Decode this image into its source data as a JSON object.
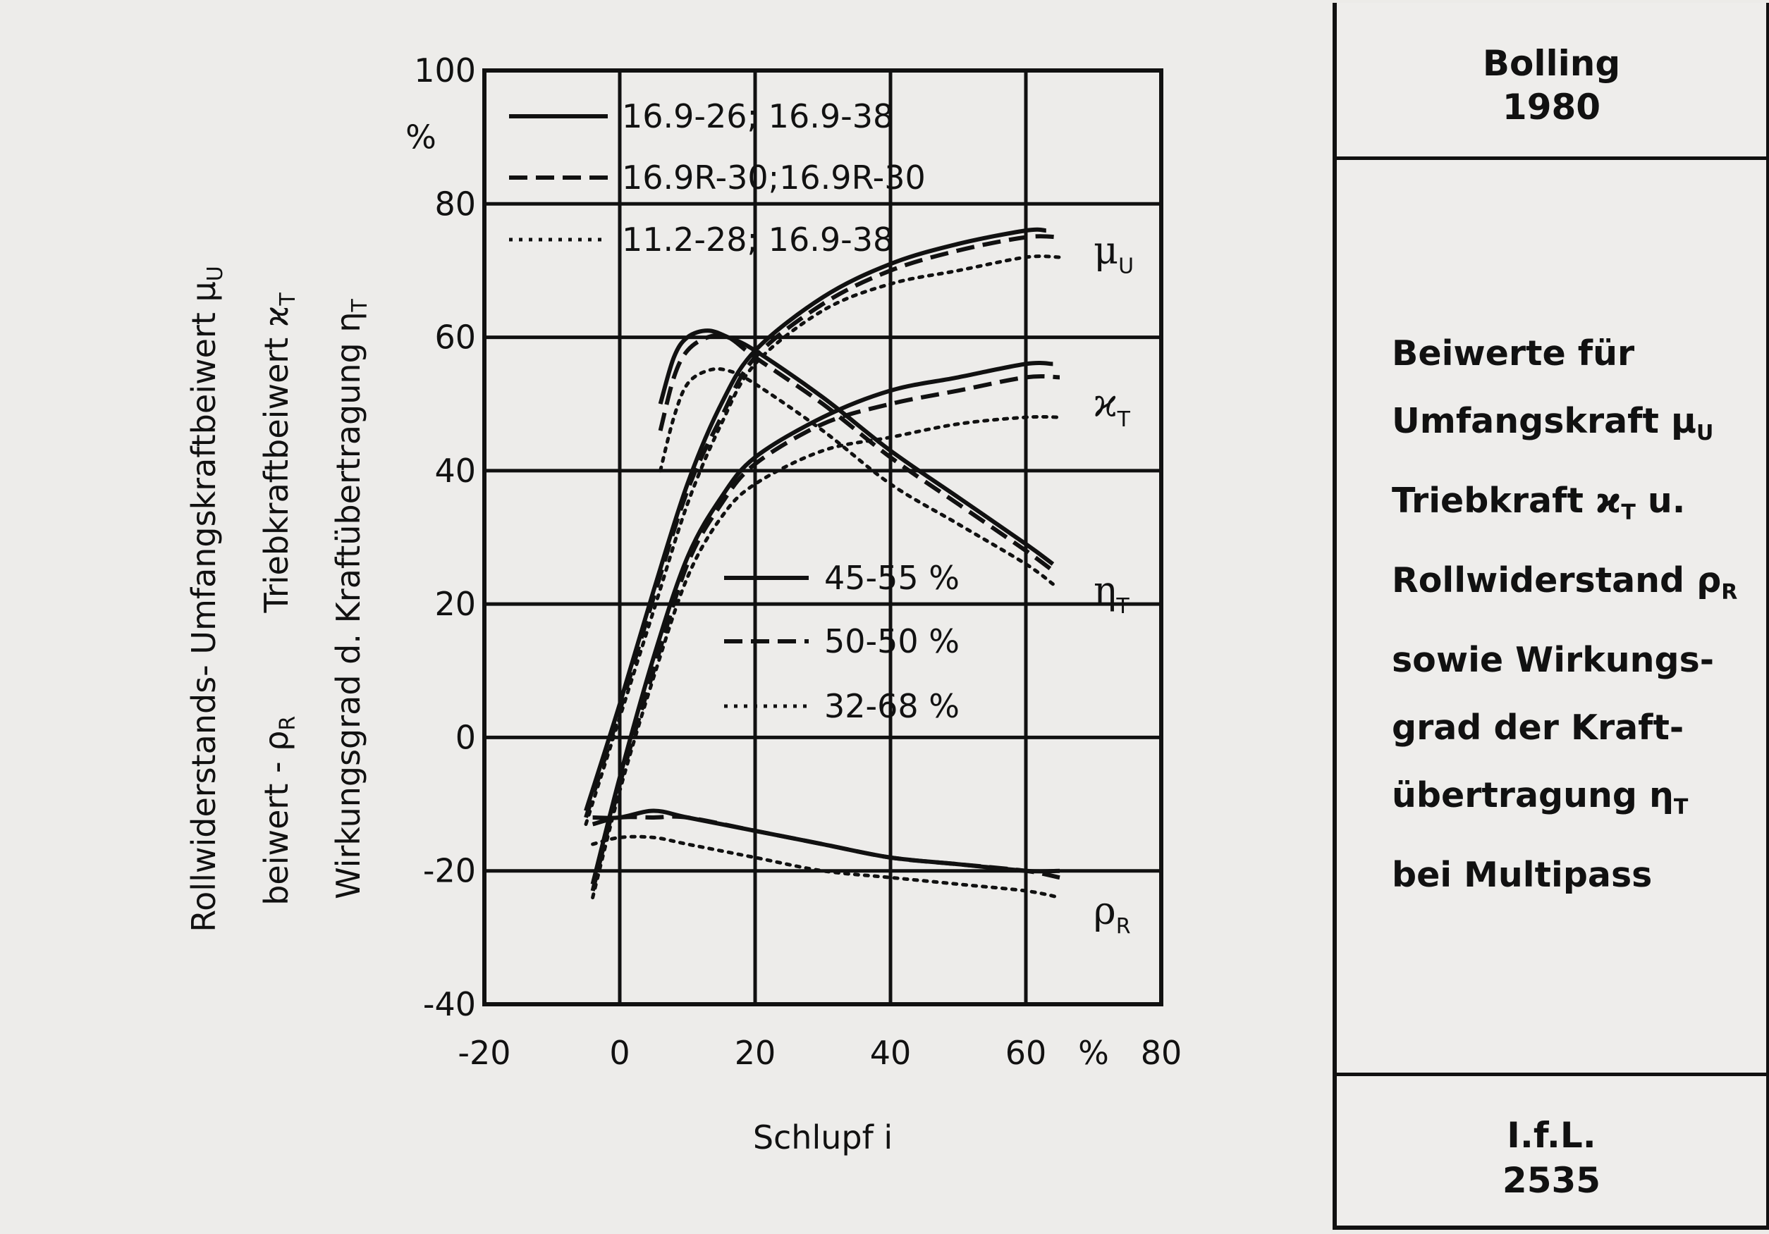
{
  "header": {
    "author": "Bolling",
    "year": "1980"
  },
  "footer": {
    "institute": "I.f.L.",
    "number": "2535"
  },
  "description": {
    "lines": [
      {
        "text": "Beiwerte für"
      },
      {
        "text": "Umfangskraft μ",
        "sub": "U"
      },
      {
        "text": "Triebkraft ϰ",
        "sub": "T",
        "tail": " u."
      },
      {
        "text": "Rollwiderstand ρ",
        "sub": "R"
      },
      {
        "text": "sowie Wirkungs-"
      },
      {
        "text": "grad der Kraft-"
      },
      {
        "text": "übertragung η",
        "sub": "T"
      },
      {
        "text": "bei Multipass"
      }
    ]
  },
  "chart_data": {
    "type": "line",
    "xlabel": "Schlupf i",
    "ylabel_lines": [
      {
        "text": "Rollwiderstands-   Umfangskraftbeiwert μ",
        "sub": "U"
      },
      {
        "text": "beiwert - ρ",
        "sub": "R",
        "tail": "          Triebkraftbeiwert ϰ",
        "sub2": "T"
      },
      {
        "text": "Wirkungsgrad d. Kraftübertragung η",
        "sub": "T"
      }
    ],
    "y_unit": "%",
    "x_unit": "%",
    "xlim": [
      -20,
      80
    ],
    "ylim": [
      -40,
      100
    ],
    "x_ticks": [
      "-20",
      "0",
      "20",
      "40",
      "60",
      "80"
    ],
    "y_ticks": [
      "100",
      "80",
      "60",
      "40",
      "20",
      "0",
      "-20",
      "-40"
    ],
    "legend_tyres": [
      {
        "style": "solid",
        "label": "16.9-26; 16.9-38"
      },
      {
        "style": "dashed",
        "label": "16.9R-30;16.9R-30"
      },
      {
        "style": "dotted",
        "label": "11.2-28; 16.9-38"
      }
    ],
    "legend_weight": [
      {
        "style": "solid",
        "label": "45-55 %"
      },
      {
        "style": "dashed",
        "label": "50-50 %"
      },
      {
        "style": "dotted",
        "label": "32-68 %"
      }
    ],
    "curve_labels": [
      {
        "base": "μ",
        "sub": "U",
        "x": 70,
        "y": 73
      },
      {
        "base": "ϰ",
        "sub": "T",
        "x": 70,
        "y": 50
      },
      {
        "base": "η",
        "sub": "T",
        "x": 70,
        "y": 22
      },
      {
        "base": "ρ",
        "sub": "R",
        "x": 70,
        "y": -26
      }
    ],
    "series": [
      {
        "group": "mu_U",
        "style": "solid",
        "points": [
          [
            -5,
            -11
          ],
          [
            0,
            5
          ],
          [
            5,
            22
          ],
          [
            10,
            38
          ],
          [
            15,
            50
          ],
          [
            20,
            58
          ],
          [
            30,
            66
          ],
          [
            40,
            71
          ],
          [
            50,
            74
          ],
          [
            60,
            76
          ],
          [
            63,
            76
          ]
        ]
      },
      {
        "group": "mu_U",
        "style": "dashed",
        "points": [
          [
            -5,
            -12
          ],
          [
            0,
            4
          ],
          [
            5,
            21
          ],
          [
            10,
            37
          ],
          [
            15,
            48
          ],
          [
            20,
            57
          ],
          [
            30,
            65
          ],
          [
            40,
            70
          ],
          [
            50,
            73
          ],
          [
            60,
            75
          ],
          [
            65,
            75
          ]
        ]
      },
      {
        "group": "mu_U",
        "style": "dotted",
        "points": [
          [
            -5,
            -13
          ],
          [
            0,
            3
          ],
          [
            5,
            19
          ],
          [
            10,
            35
          ],
          [
            15,
            47
          ],
          [
            20,
            56
          ],
          [
            30,
            64
          ],
          [
            40,
            68
          ],
          [
            50,
            70
          ],
          [
            60,
            72
          ],
          [
            65,
            72
          ]
        ]
      },
      {
        "group": "chi_T",
        "style": "solid",
        "points": [
          [
            -4,
            -22
          ],
          [
            0,
            -6
          ],
          [
            5,
            12
          ],
          [
            10,
            27
          ],
          [
            15,
            36
          ],
          [
            20,
            42
          ],
          [
            30,
            48
          ],
          [
            40,
            52
          ],
          [
            50,
            54
          ],
          [
            60,
            56
          ],
          [
            64,
            56
          ]
        ]
      },
      {
        "group": "chi_T",
        "style": "dashed",
        "points": [
          [
            -4,
            -23
          ],
          [
            0,
            -7
          ],
          [
            5,
            10
          ],
          [
            10,
            26
          ],
          [
            15,
            35
          ],
          [
            20,
            41
          ],
          [
            30,
            47
          ],
          [
            40,
            50
          ],
          [
            50,
            52
          ],
          [
            60,
            54
          ],
          [
            65,
            54
          ]
        ]
      },
      {
        "group": "chi_T",
        "style": "dotted",
        "points": [
          [
            -4,
            -24
          ],
          [
            0,
            -8
          ],
          [
            5,
            9
          ],
          [
            10,
            24
          ],
          [
            15,
            33
          ],
          [
            20,
            38
          ],
          [
            30,
            43
          ],
          [
            40,
            45
          ],
          [
            50,
            47
          ],
          [
            60,
            48
          ],
          [
            65,
            48
          ]
        ]
      },
      {
        "group": "eta_T",
        "style": "solid",
        "points": [
          [
            6,
            50
          ],
          [
            8,
            57
          ],
          [
            10,
            60
          ],
          [
            13,
            61
          ],
          [
            16,
            60
          ],
          [
            20,
            58
          ],
          [
            30,
            51
          ],
          [
            40,
            43
          ],
          [
            50,
            36
          ],
          [
            60,
            29
          ],
          [
            64,
            26
          ]
        ]
      },
      {
        "group": "eta_T",
        "style": "dashed",
        "points": [
          [
            6,
            46
          ],
          [
            8,
            54
          ],
          [
            10,
            58
          ],
          [
            13,
            60
          ],
          [
            16,
            60
          ],
          [
            20,
            57
          ],
          [
            30,
            50
          ],
          [
            40,
            42
          ],
          [
            50,
            35
          ],
          [
            60,
            28
          ],
          [
            64,
            25
          ]
        ]
      },
      {
        "group": "eta_T",
        "style": "dotted",
        "points": [
          [
            6,
            40
          ],
          [
            8,
            48
          ],
          [
            10,
            53
          ],
          [
            13,
            55
          ],
          [
            16,
            55
          ],
          [
            20,
            53
          ],
          [
            30,
            46
          ],
          [
            40,
            38
          ],
          [
            50,
            32
          ],
          [
            60,
            26
          ],
          [
            64,
            23
          ]
        ]
      },
      {
        "group": "rho_R",
        "style": "solid",
        "points": [
          [
            -4,
            -12
          ],
          [
            0,
            -12
          ],
          [
            5,
            -11
          ],
          [
            10,
            -12
          ],
          [
            20,
            -14
          ],
          [
            30,
            -16
          ],
          [
            40,
            -18
          ],
          [
            50,
            -19
          ],
          [
            60,
            -20
          ],
          [
            65,
            -20
          ]
        ]
      },
      {
        "group": "rho_R",
        "style": "dashed",
        "points": [
          [
            -4,
            -13
          ],
          [
            0,
            -12
          ],
          [
            5,
            -12
          ],
          [
            10,
            -12
          ],
          [
            20,
            -14
          ],
          [
            30,
            -16
          ],
          [
            40,
            -18
          ],
          [
            50,
            -19
          ],
          [
            60,
            -20
          ],
          [
            65,
            -21
          ]
        ]
      },
      {
        "group": "rho_R",
        "style": "dotted",
        "points": [
          [
            -4,
            -16
          ],
          [
            0,
            -15
          ],
          [
            5,
            -15
          ],
          [
            10,
            -16
          ],
          [
            20,
            -18
          ],
          [
            30,
            -20
          ],
          [
            40,
            -21
          ],
          [
            50,
            -22
          ],
          [
            60,
            -23
          ],
          [
            65,
            -24
          ]
        ]
      }
    ]
  }
}
